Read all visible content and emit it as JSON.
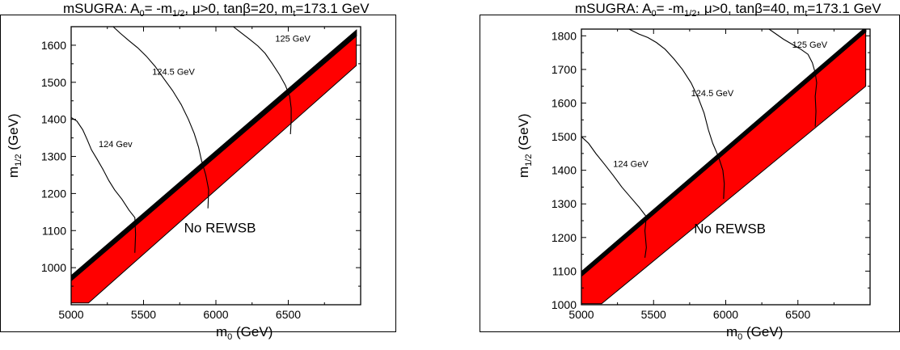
{
  "chart_data": [
    {
      "type": "area",
      "title_parts": [
        "mSUGRA: A",
        "0",
        "= -m",
        "1/2",
        ", μ>0, tanβ=20, m",
        "t",
        "=173.1 GeV"
      ],
      "xlabel_parts": [
        "m",
        "0",
        " (GeV)"
      ],
      "ylabel_parts": [
        "m",
        "1/2",
        " (GeV)"
      ],
      "xlim": [
        5000,
        7000
      ],
      "ylim": [
        900,
        1650
      ],
      "x_ticks": [
        5000,
        5500,
        6000,
        6500
      ],
      "y_ticks": [
        1000,
        1100,
        1200,
        1300,
        1400,
        1500,
        1600
      ],
      "region_label": "No REWSB",
      "excluded_band": {
        "color": "#000000",
        "upper": [
          [
            5000,
            978
          ],
          [
            6970,
            1640
          ]
        ],
        "lower": [
          [
            5000,
            965
          ],
          [
            6970,
            1625
          ]
        ]
      },
      "allowed_band": {
        "color": "#ff0000",
        "upper": [
          [
            5000,
            965
          ],
          [
            6970,
            1625
          ]
        ],
        "lower": [
          [
            5000,
            905
          ],
          [
            5120,
            905
          ],
          [
            6970,
            1545
          ]
        ]
      },
      "contours": [
        {
          "label": "124 Gev",
          "label_at": [
            5190,
            1325
          ],
          "points": [
            [
              5000,
              1405
            ],
            [
              5040,
              1395
            ],
            [
              5080,
              1372
            ],
            [
              5110,
              1346
            ],
            [
              5140,
              1318
            ],
            [
              5180,
              1292
            ],
            [
              5220,
              1265
            ],
            [
              5260,
              1235
            ],
            [
              5300,
              1210
            ],
            [
              5350,
              1185
            ],
            [
              5400,
              1155
            ],
            [
              5440,
              1135
            ],
            [
              5445,
              1090
            ],
            [
              5440,
              1040
            ]
          ]
        },
        {
          "label": "124.5 GeV",
          "label_at": [
            5560,
            1520
          ],
          "points": [
            [
              5290,
              1650
            ],
            [
              5340,
              1632
            ],
            [
              5400,
              1612
            ],
            [
              5460,
              1593
            ],
            [
              5520,
              1570
            ],
            [
              5580,
              1543
            ],
            [
              5640,
              1510
            ],
            [
              5700,
              1478
            ],
            [
              5760,
              1440
            ],
            [
              5810,
              1400
            ],
            [
              5850,
              1362
            ],
            [
              5880,
              1325
            ],
            [
              5900,
              1290
            ],
            [
              5930,
              1250
            ],
            [
              5950,
              1210
            ],
            [
              5945,
              1160
            ]
          ]
        },
        {
          "label": "125 GeV",
          "label_at": [
            6410,
            1610
          ],
          "points": [
            [
              6120,
              1650
            ],
            [
              6170,
              1635
            ],
            [
              6230,
              1617
            ],
            [
              6290,
              1598
            ],
            [
              6340,
              1578
            ],
            [
              6390,
              1550
            ],
            [
              6440,
              1520
            ],
            [
              6480,
              1492
            ],
            [
              6510,
              1462
            ],
            [
              6520,
              1430
            ],
            [
              6520,
              1395
            ],
            [
              6515,
              1360
            ]
          ]
        }
      ]
    },
    {
      "type": "area",
      "title_parts": [
        "mSUGRA: A",
        "0",
        "= -m",
        "1/2",
        ", μ>0, tanβ=40, m",
        "t",
        "=173.1 GeV"
      ],
      "xlabel_parts": [
        "m",
        "0",
        " (GeV)"
      ],
      "ylabel_parts": [
        "m",
        "1/2",
        " (GeV)"
      ],
      "xlim": [
        5000,
        7000
      ],
      "ylim": [
        1000,
        1820
      ],
      "x_ticks": [
        5000,
        5500,
        6000,
        6500
      ],
      "y_ticks": [
        1000,
        1100,
        1200,
        1300,
        1400,
        1500,
        1600,
        1700,
        1800
      ],
      "region_label": "No REWSB",
      "excluded_band": {
        "color": "#000000",
        "upper": [
          [
            5000,
            1098
          ],
          [
            6970,
            1825
          ]
        ],
        "lower": [
          [
            5000,
            1085
          ],
          [
            6970,
            1812
          ]
        ]
      },
      "allowed_band": {
        "color": "#ff0000",
        "upper": [
          [
            5000,
            1085
          ],
          [
            6970,
            1812
          ]
        ],
        "lower": [
          [
            5000,
            1003
          ],
          [
            5140,
            1003
          ],
          [
            6970,
            1650
          ]
        ]
      },
      "contours": [
        {
          "label": "124 GeV",
          "label_at": [
            5220,
            1410
          ],
          "points": [
            [
              5000,
              1500
            ],
            [
              5050,
              1480
            ],
            [
              5100,
              1450
            ],
            [
              5160,
              1418
            ],
            [
              5220,
              1385
            ],
            [
              5280,
              1350
            ],
            [
              5340,
              1320
            ],
            [
              5400,
              1290
            ],
            [
              5450,
              1262
            ],
            [
              5440,
              1220
            ],
            [
              5450,
              1170
            ],
            [
              5440,
              1140
            ]
          ]
        },
        {
          "label": "124.5 GeV",
          "label_at": [
            5760,
            1620
          ],
          "points": [
            [
              5330,
              1820
            ],
            [
              5400,
              1805
            ],
            [
              5460,
              1795
            ],
            [
              5520,
              1780
            ],
            [
              5580,
              1760
            ],
            [
              5640,
              1732
            ],
            [
              5700,
              1700
            ],
            [
              5760,
              1660
            ],
            [
              5810,
              1615
            ],
            [
              5850,
              1570
            ],
            [
              5880,
              1520
            ],
            [
              5910,
              1480
            ],
            [
              5950,
              1440
            ],
            [
              5980,
              1400
            ],
            [
              5990,
              1360
            ],
            [
              5985,
              1315
            ]
          ]
        },
        {
          "label": "125 GeV",
          "label_at": [
            6460,
            1765
          ],
          "points": [
            [
              6300,
              1820
            ],
            [
              6350,
              1805
            ],
            [
              6400,
              1790
            ],
            [
              6460,
              1775
            ],
            [
              6520,
              1760
            ],
            [
              6570,
              1745
            ],
            [
              6600,
              1720
            ],
            [
              6620,
              1690
            ],
            [
              6630,
              1660
            ],
            [
              6620,
              1620
            ],
            [
              6625,
              1575
            ],
            [
              6620,
              1530
            ]
          ]
        }
      ]
    }
  ]
}
